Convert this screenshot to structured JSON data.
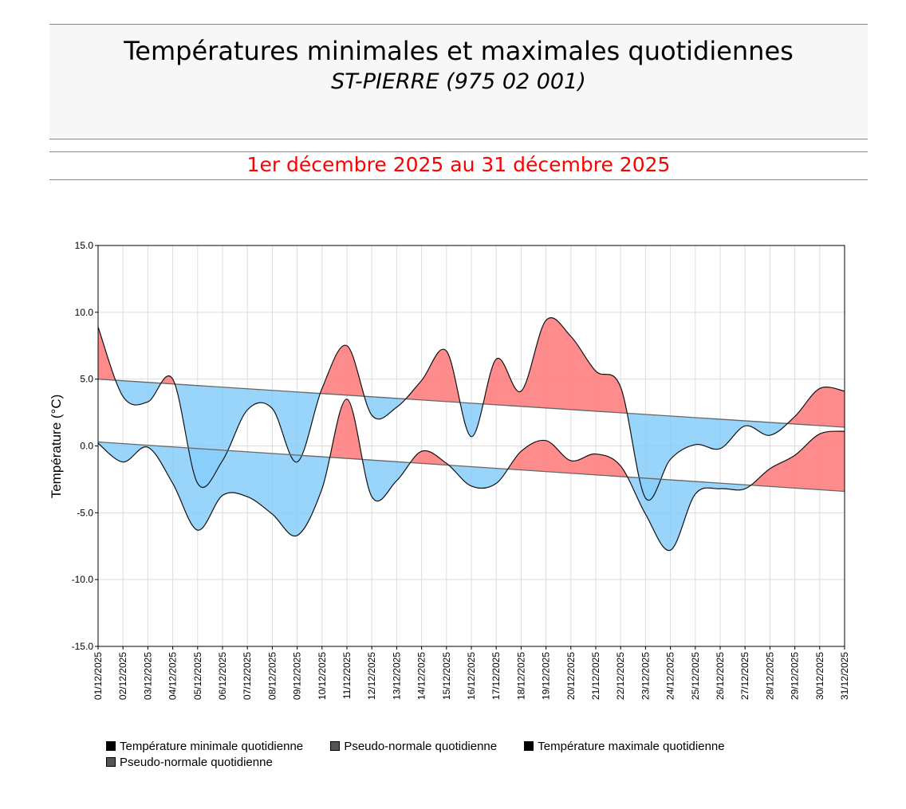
{
  "header": {
    "title": "Températures minimales et maximales quotidiennes",
    "station": "ST-PIERRE (975 02 001)",
    "period": "1er décembre 2025 au 31 décembre 2025"
  },
  "colors": {
    "above": "#ff7f7f",
    "below": "#87cefa",
    "period": "#ff0000"
  },
  "legend": [
    {
      "label": "Température minimale quotidienne",
      "color": "#000000"
    },
    {
      "label": "Pseudo-normale quotidienne",
      "color": "#555555"
    },
    {
      "label": "Température maximale quotidienne",
      "color": "#000000"
    },
    {
      "label": "Pseudo-normale quotidienne",
      "color": "#555555"
    }
  ],
  "chart_data": {
    "type": "area",
    "ylabel": "Température (°C)",
    "ylim": [
      -15,
      15
    ],
    "yticks": [
      "15.0",
      "10.0",
      "5.0",
      "0.0",
      "-5.0",
      "-10.0",
      "-15.0"
    ],
    "grid": true,
    "legend_placement": "bottom",
    "categories": [
      "01/12/2025",
      "02/12/2025",
      "03/12/2025",
      "04/12/2025",
      "05/12/2025",
      "06/12/2025",
      "07/12/2025",
      "08/12/2025",
      "09/12/2025",
      "10/12/2025",
      "11/12/2025",
      "12/12/2025",
      "13/12/2025",
      "14/12/2025",
      "15/12/2025",
      "16/12/2025",
      "17/12/2025",
      "18/12/2025",
      "19/12/2025",
      "20/12/2025",
      "21/12/2025",
      "22/12/2025",
      "23/12/2025",
      "24/12/2025",
      "25/12/2025",
      "26/12/2025",
      "27/12/2025",
      "28/12/2025",
      "29/12/2025",
      "30/12/2025",
      "31/12/2025"
    ],
    "series": [
      {
        "name": "Température maximale quotidienne",
        "values": [
          8.9,
          3.7,
          3.3,
          5.0,
          -2.8,
          -1.1,
          2.7,
          2.8,
          -1.2,
          4.3,
          7.5,
          2.3,
          2.9,
          4.9,
          7.1,
          0.7,
          6.5,
          4.1,
          9.4,
          8.2,
          5.6,
          4.4,
          -3.9,
          -1.0,
          0.1,
          -0.2,
          1.5,
          0.8,
          2.2,
          4.3,
          4.1
        ],
        "normal": [
          5.0,
          1.4
        ]
      },
      {
        "name": "Température minimale quotidienne",
        "values": [
          0.2,
          -1.2,
          -0.1,
          -2.8,
          -6.3,
          -3.7,
          -3.8,
          -5.1,
          -6.7,
          -3.2,
          3.5,
          -3.8,
          -2.6,
          -0.4,
          -1.3,
          -3.0,
          -2.8,
          -0.4,
          0.4,
          -1.1,
          -0.6,
          -1.5,
          -5.1,
          -7.8,
          -3.6,
          -3.2,
          -3.2,
          -1.7,
          -0.7,
          0.9,
          1.1
        ],
        "normal": [
          0.3,
          -3.4
        ]
      }
    ]
  }
}
